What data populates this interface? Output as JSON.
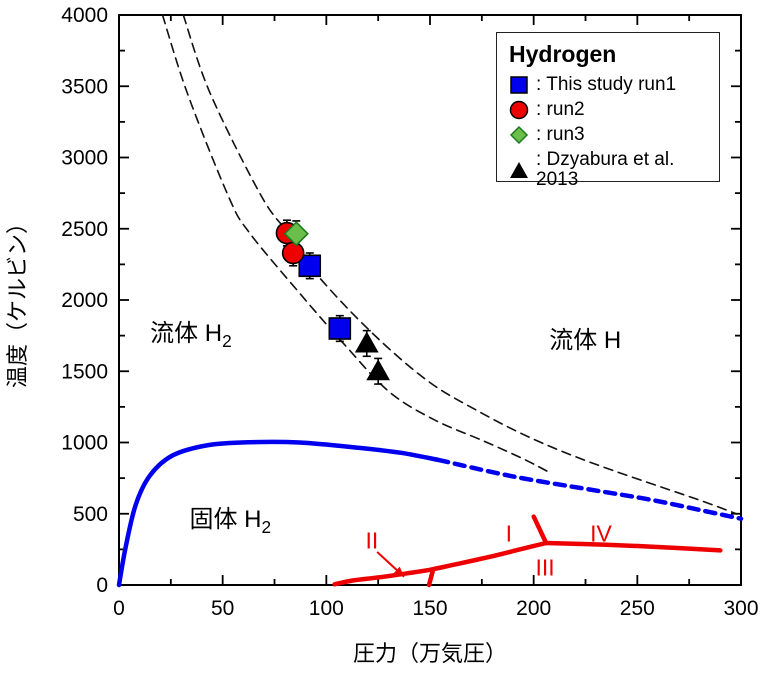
{
  "colors": {
    "blue": "#0000EE",
    "red": "#EE0000",
    "green": "#6CBE4B",
    "green_border": "#1E7A1E",
    "black": "#000000",
    "axis": "#000000"
  },
  "legend": {
    "title": "Hydrogen",
    "items": [
      {
        "marker": "square",
        "label": ": This study run1"
      },
      {
        "marker": "circle",
        "label": ": run2"
      },
      {
        "marker": "diamond",
        "label": ": run3"
      },
      {
        "marker": "triangle",
        "label": ": Dzyabura et al. 2013"
      }
    ]
  },
  "chart_data": {
    "type": "line",
    "title": "Hydrogen",
    "xlabel": "圧力（万気圧）",
    "ylabel": "温度（ケルビン）",
    "xlim": [
      0,
      300
    ],
    "ylim": [
      0,
      4000
    ],
    "grid": false,
    "legend_position": "upper right",
    "x_ticks_major": [
      0,
      50,
      100,
      150,
      200,
      250,
      300
    ],
    "x_ticks_minor": [
      25,
      75,
      125,
      175,
      225,
      275
    ],
    "y_ticks_major": [
      0,
      500,
      1000,
      1500,
      2000,
      2500,
      3000,
      3500,
      4000
    ],
    "y_ticks_minor": [
      250,
      750,
      1250,
      1750,
      2250,
      2750,
      3250,
      3750
    ],
    "series": [
      {
        "name": "melting-line-solid",
        "color": "#0000EE",
        "width": 4.5,
        "dash": "",
        "smooth": true,
        "points": [
          [
            0,
            0
          ],
          [
            3,
            250
          ],
          [
            8,
            560
          ],
          [
            15,
            770
          ],
          [
            26,
            910
          ],
          [
            43,
            982
          ],
          [
            63,
            1002
          ],
          [
            87,
            1000
          ],
          [
            116,
            962
          ],
          [
            136,
            928
          ],
          [
            154,
            878
          ]
        ]
      },
      {
        "name": "melting-line-extrapolated",
        "color": "#0000EE",
        "width": 4.5,
        "dash": "10 7",
        "smooth": true,
        "points": [
          [
            154,
            878
          ],
          [
            190,
            762
          ],
          [
            227,
            670
          ],
          [
            255,
            602
          ],
          [
            280,
            527
          ],
          [
            300,
            465
          ]
        ]
      },
      {
        "name": "dissociation-boundary-lower",
        "color": "#111111",
        "width": 1.6,
        "dash": "9 6",
        "smooth": true,
        "points": [
          [
            21,
            4000
          ],
          [
            33,
            3450
          ],
          [
            53,
            2720
          ],
          [
            63,
            2470
          ],
          [
            87,
            2050
          ],
          [
            108,
            1700
          ],
          [
            130,
            1360
          ],
          [
            152,
            1160
          ],
          [
            176,
            1010
          ],
          [
            195,
            885
          ],
          [
            207,
            795
          ]
        ]
      },
      {
        "name": "dissociation-boundary-upper",
        "color": "#111111",
        "width": 1.6,
        "dash": "9 6",
        "smooth": true,
        "points": [
          [
            31,
            4000
          ],
          [
            44,
            3450
          ],
          [
            69,
            2720
          ],
          [
            83,
            2450
          ],
          [
            92,
            2240
          ],
          [
            111,
            1930
          ],
          [
            132,
            1635
          ],
          [
            152,
            1400
          ],
          [
            172,
            1230
          ],
          [
            193,
            1070
          ],
          [
            215,
            930
          ],
          [
            238,
            805
          ],
          [
            262,
            685
          ],
          [
            284,
            575
          ],
          [
            298,
            498
          ]
        ]
      },
      {
        "name": "solid-phase-boundary-main",
        "color": "#EE0000",
        "width": 4.5,
        "dash": "",
        "smooth": true,
        "points": [
          [
            104,
            5
          ],
          [
            113,
            32
          ],
          [
            126,
            55
          ],
          [
            139,
            82
          ],
          [
            150,
            107
          ],
          [
            163,
            147
          ],
          [
            178,
            195
          ],
          [
            192,
            245
          ],
          [
            206,
            295
          ]
        ]
      },
      {
        "name": "phase-I-II-boundary",
        "color": "#EE0000",
        "width": 4.5,
        "dash": "",
        "smooth": false,
        "points": [
          [
            149.5,
            0
          ],
          [
            151.5,
            107
          ]
        ]
      },
      {
        "name": "phase-I-IV-boundary",
        "color": "#EE0000",
        "width": 4.5,
        "dash": "",
        "smooth": false,
        "points": [
          [
            206,
            295
          ],
          [
            200,
            480
          ]
        ]
      },
      {
        "name": "phase-IV-boundary",
        "color": "#EE0000",
        "width": 4.5,
        "dash": "",
        "smooth": true,
        "points": [
          [
            206,
            295
          ],
          [
            235,
            283
          ],
          [
            262,
            265
          ],
          [
            290,
            243
          ]
        ]
      }
    ],
    "points": [
      {
        "name": "this-study-run1",
        "marker": "square",
        "fill": "#0000EE",
        "stroke": "#000000",
        "err": 90,
        "data": [
          [
            92,
            2240
          ],
          [
            106.5,
            1800
          ]
        ]
      },
      {
        "name": "run2",
        "marker": "circle",
        "fill": "#EE0000",
        "stroke": "#000000",
        "err": 90,
        "data": [
          [
            81,
            2470
          ],
          [
            84,
            2330
          ]
        ]
      },
      {
        "name": "run3",
        "marker": "diamond",
        "fill": "#6CBE4B",
        "stroke": "#1E7A1E",
        "err": 90,
        "data": [
          [
            85.5,
            2465
          ]
        ]
      },
      {
        "name": "dzyabura-2013",
        "marker": "triangle",
        "fill": "#000000",
        "stroke": "#000000",
        "err": 90,
        "data": [
          [
            119.5,
            1695
          ],
          [
            125,
            1500
          ]
        ]
      }
    ],
    "annotations": [
      {
        "name": "label-fluid-h2",
        "text": "流体 H",
        "sub": "2",
        "x": 15,
        "y": 1712,
        "size": 24,
        "color": "#000000",
        "anchor": "start"
      },
      {
        "name": "label-fluid-h",
        "text": "流体 H",
        "sub": "",
        "x": 207.5,
        "y": 1663,
        "size": 24,
        "color": "#000000",
        "anchor": "start"
      },
      {
        "name": "label-solid-h2",
        "text": "固体 H",
        "sub": "2",
        "x": 34,
        "y": 407,
        "size": 24,
        "color": "#000000",
        "anchor": "start"
      },
      {
        "name": "label-phase-I",
        "text": "I",
        "sub": "",
        "x": 188,
        "y": 305,
        "size": 23,
        "color": "#EE0000",
        "anchor": "middle"
      },
      {
        "name": "label-phase-II",
        "text": "II",
        "sub": "",
        "x": 122,
        "y": 255,
        "size": 23,
        "color": "#EE0000",
        "anchor": "middle"
      },
      {
        "name": "label-phase-III",
        "text": "III",
        "sub": "",
        "x": 205.5,
        "y": 65,
        "size": 23,
        "color": "#EE0000",
        "anchor": "middle"
      },
      {
        "name": "label-phase-IV",
        "text": "IV",
        "sub": "",
        "x": 232.5,
        "y": 305,
        "size": 23,
        "color": "#EE0000",
        "anchor": "middle"
      }
    ],
    "arrow": {
      "name": "phase-II-pointer-arrow",
      "color": "#EE0000",
      "from": [
        124.5,
        232
      ],
      "to": [
        137.5,
        58
      ]
    }
  }
}
